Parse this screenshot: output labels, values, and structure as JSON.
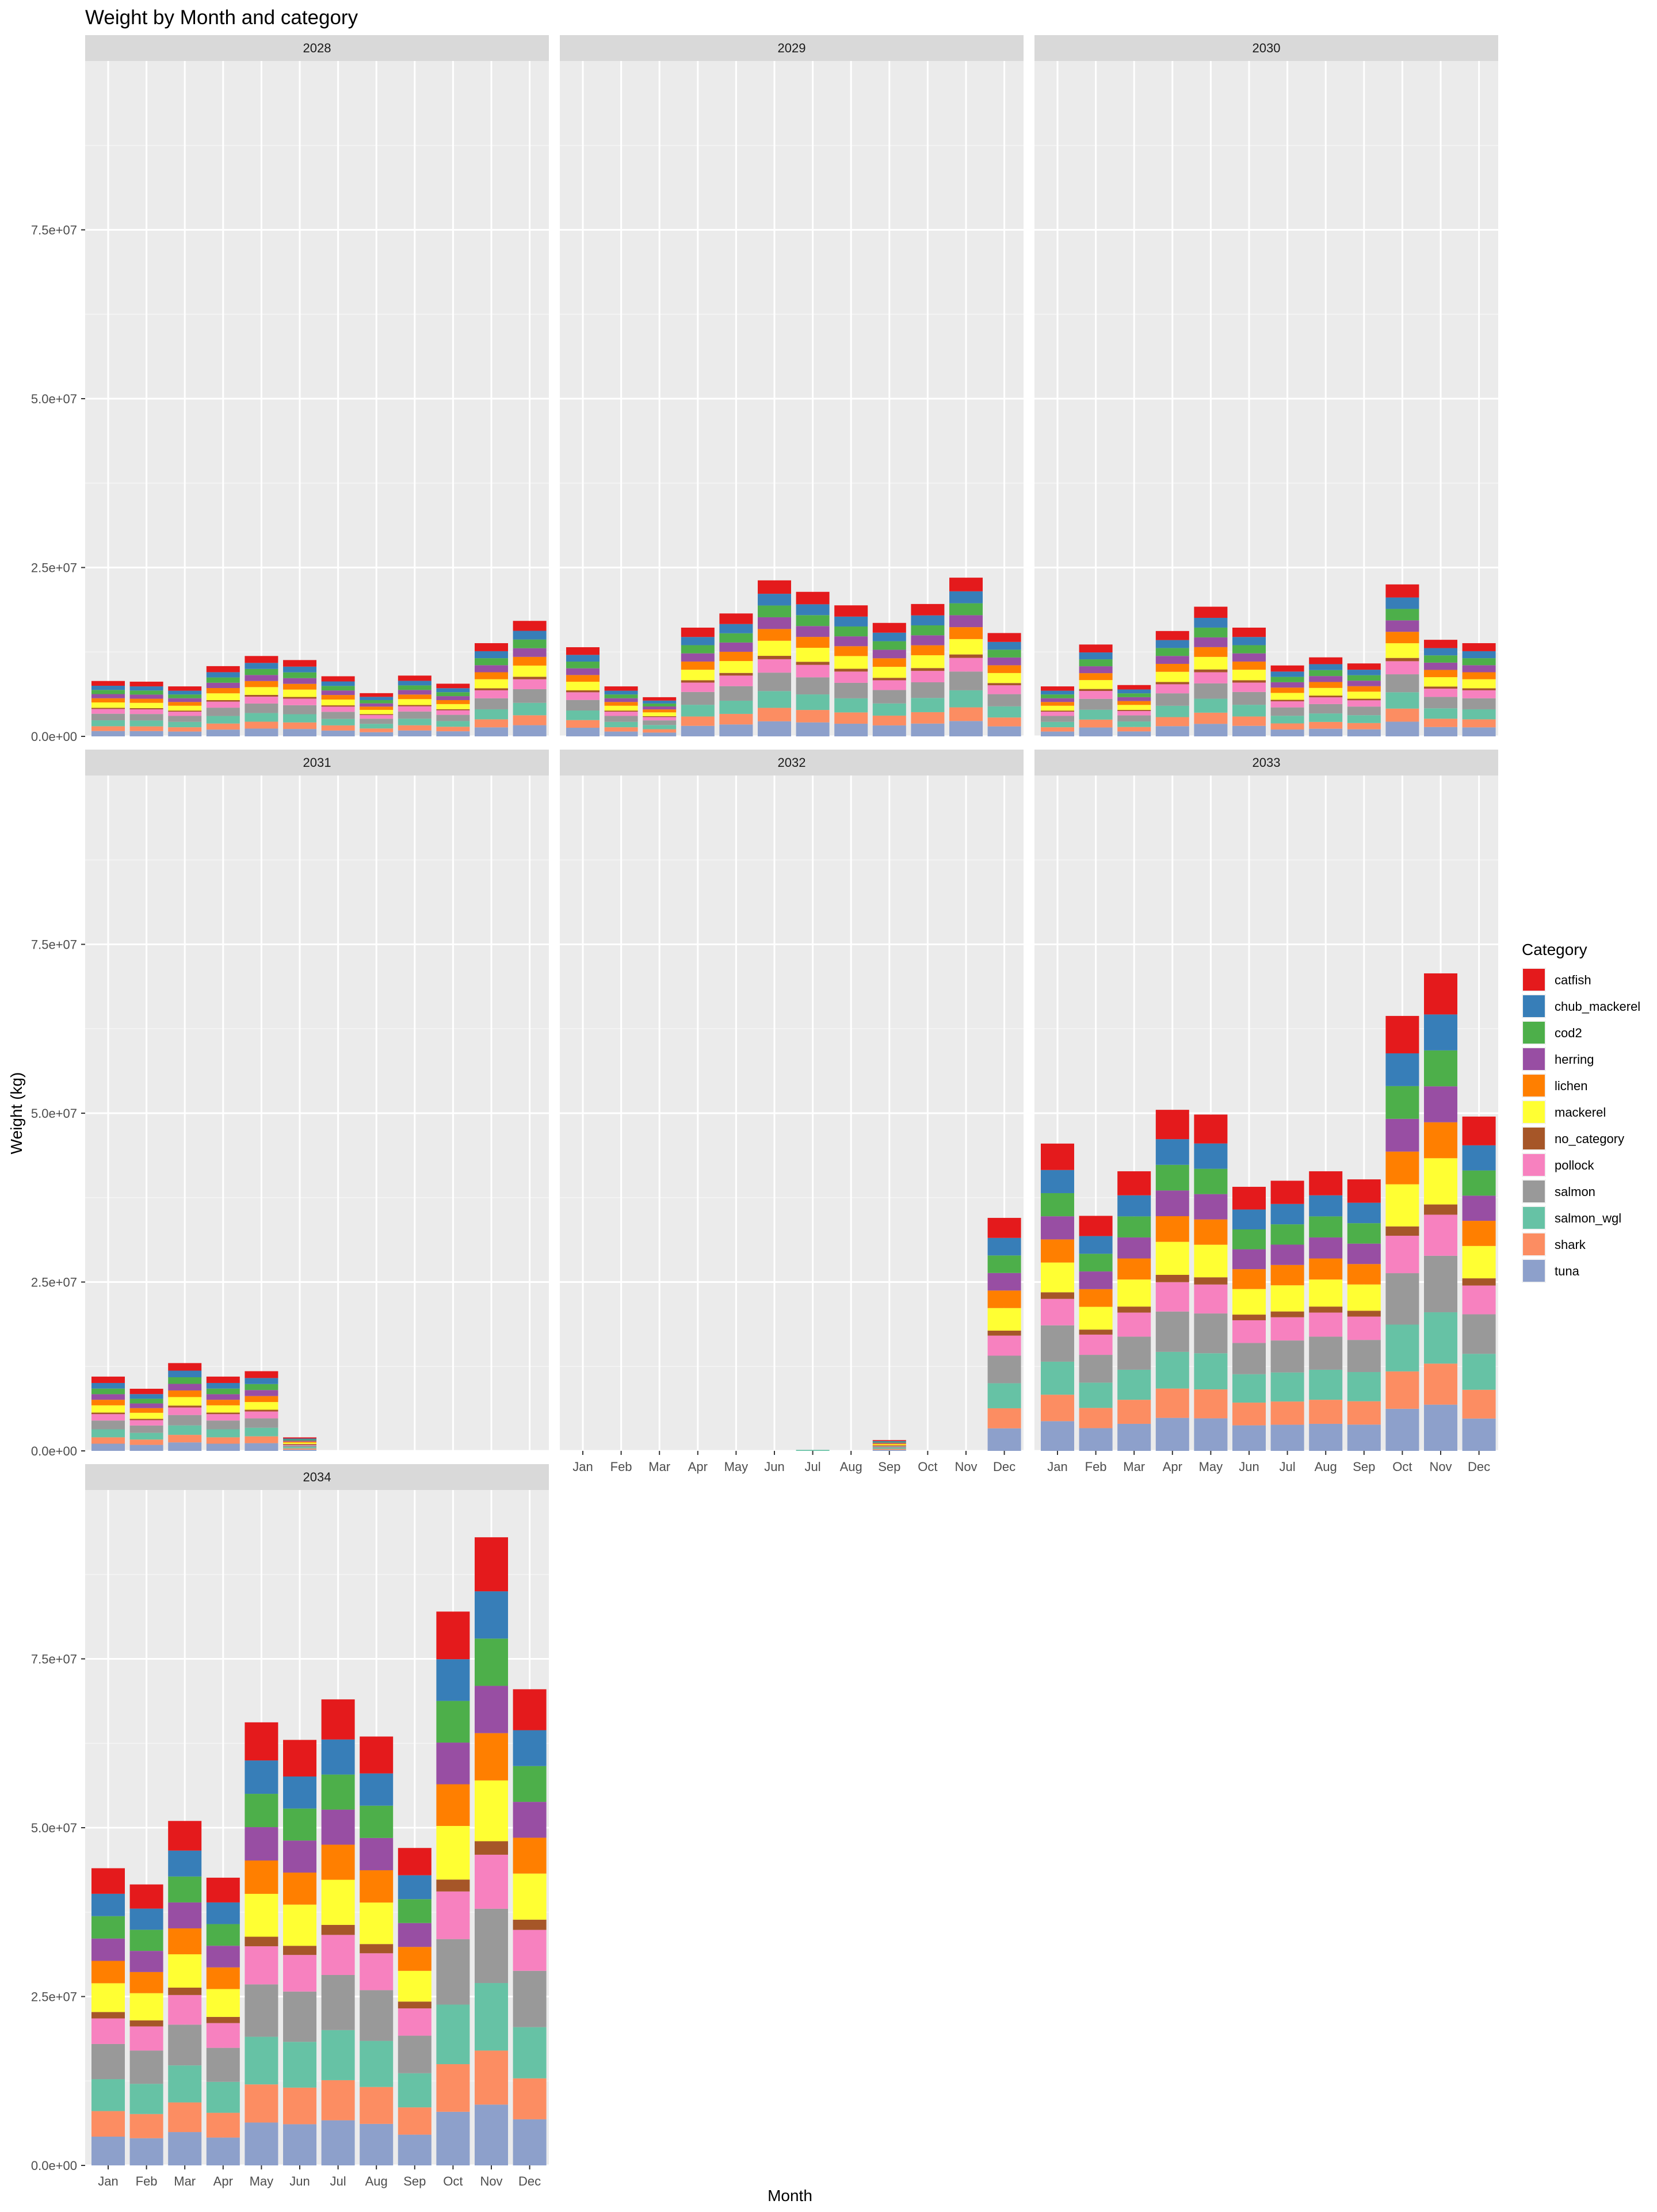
{
  "chart_data": {
    "type": "bar",
    "stacked": true,
    "faceted_by": "year",
    "title": "Weight by Month and category",
    "xlabel": "Month",
    "ylabel": "Weight (kg)",
    "ylim": [
      0,
      100000000
    ],
    "yticks": [
      0,
      25000000,
      50000000,
      75000000
    ],
    "ytick_labels": [
      "0.0e+00",
      "2.5e+07",
      "5.0e+07",
      "7.5e+07"
    ],
    "grid": true,
    "legend_position": "right",
    "legend_title": "Category",
    "categories": [
      "Jan",
      "Feb",
      "Mar",
      "Apr",
      "May",
      "Jun",
      "Jul",
      "Aug",
      "Sep",
      "Oct",
      "Nov",
      "Dec"
    ],
    "series": [
      {
        "name": "catfish",
        "color": "#e41a1c"
      },
      {
        "name": "chub_mackerel",
        "color": "#377eb8"
      },
      {
        "name": "cod2",
        "color": "#4daf4a"
      },
      {
        "name": "herring",
        "color": "#984ea3"
      },
      {
        "name": "lichen",
        "color": "#ff7f00"
      },
      {
        "name": "mackerel",
        "color": "#ffff33"
      },
      {
        "name": "no_category",
        "color": "#a65628"
      },
      {
        "name": "pollock",
        "color": "#f781bf"
      },
      {
        "name": "salmon",
        "color": "#999999"
      },
      {
        "name": "salmon_wgl",
        "color": "#66c2a5"
      },
      {
        "name": "shark",
        "color": "#fc8d62"
      },
      {
        "name": "tuna",
        "color": "#8da0cb"
      }
    ],
    "panels": [
      {
        "year": "2028",
        "totals": [
          8200000,
          8100000,
          7400000,
          10400000,
          11900000,
          11300000,
          8900000,
          6400000,
          9000000,
          7800000,
          13800000,
          17100000
        ]
      },
      {
        "year": "2029",
        "totals": [
          13200000,
          7400000,
          5800000,
          16100000,
          18200000,
          23100000,
          21400000,
          19400000,
          16800000,
          19600000,
          23500000,
          15300000
        ]
      },
      {
        "year": "2030",
        "totals": [
          7400000,
          13600000,
          7600000,
          15600000,
          19200000,
          16100000,
          10500000,
          11700000,
          10800000,
          22500000,
          14300000,
          13800000
        ]
      },
      {
        "year": "2031",
        "totals": [
          11000000,
          9200000,
          13000000,
          11000000,
          11800000,
          2000000,
          0,
          0,
          0,
          0,
          0,
          0
        ]
      },
      {
        "year": "2032",
        "totals": [
          0,
          0,
          0,
          0,
          0,
          0,
          150000,
          0,
          1600000,
          0,
          0,
          34500000
        ]
      },
      {
        "year": "2033",
        "totals": [
          45500000,
          34800000,
          41400000,
          50500000,
          49800000,
          39100000,
          40000000,
          41400000,
          40200000,
          64400000,
          70700000,
          49500000
        ]
      },
      {
        "year": "2034",
        "totals": [
          44000000,
          41600000,
          51000000,
          42600000,
          65600000,
          63000000,
          69000000,
          63500000,
          47000000,
          82000000,
          93000000,
          70500000
        ]
      }
    ],
    "composition_pct": [
      8,
      7,
      7,
      7,
      7,
      9,
      2,
      8,
      11,
      10,
      8,
      9
    ],
    "month_exceptions": [
      {
        "year": "2032",
        "month": "Jul",
        "note": "salmon_wgl only"
      }
    ]
  }
}
